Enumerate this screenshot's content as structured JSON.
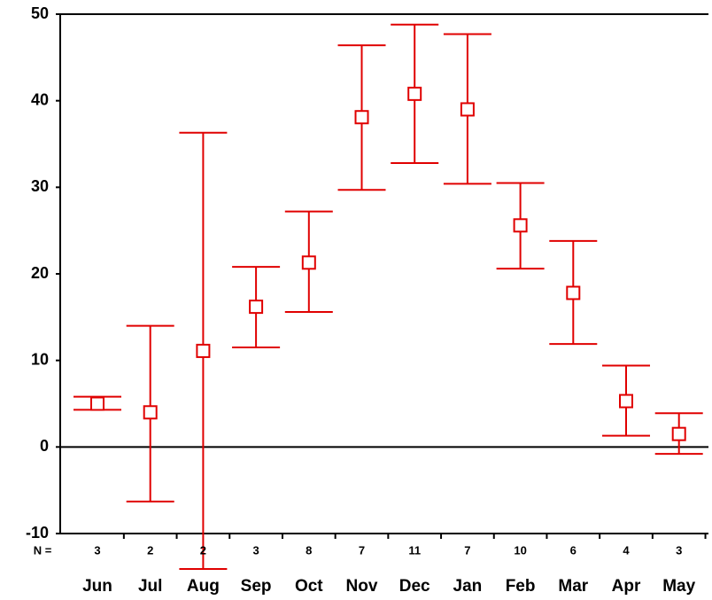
{
  "chart_data": {
    "type": "errorbar",
    "categories": [
      "Jun",
      "Jul",
      "Aug",
      "Sep",
      "Oct",
      "Nov",
      "Dec",
      "Jan",
      "Feb",
      "Mar",
      "Apr",
      "May"
    ],
    "series": [
      {
        "color": "#e00000",
        "values": [
          5,
          4,
          11.1,
          16.2,
          21.3,
          38.1,
          40.8,
          39,
          25.6,
          17.8,
          5.3,
          1.5
        ],
        "upper": [
          5.8,
          14,
          36.3,
          20.8,
          27.2,
          46.4,
          48.8,
          47.7,
          30.5,
          23.8,
          9.4,
          3.9
        ],
        "lower": [
          4.3,
          -6.3,
          -14.1,
          11.5,
          15.6,
          29.7,
          32.8,
          30.4,
          20.6,
          11.9,
          1.3,
          -0.8
        ]
      }
    ],
    "n_label": "N =",
    "n": [
      3,
      2,
      2,
      3,
      8,
      7,
      11,
      7,
      10,
      6,
      4,
      3
    ],
    "ylim": [
      -10,
      50
    ],
    "yticks": [
      -10,
      0,
      10,
      20,
      30,
      40,
      50
    ],
    "reference_line": 0
  }
}
